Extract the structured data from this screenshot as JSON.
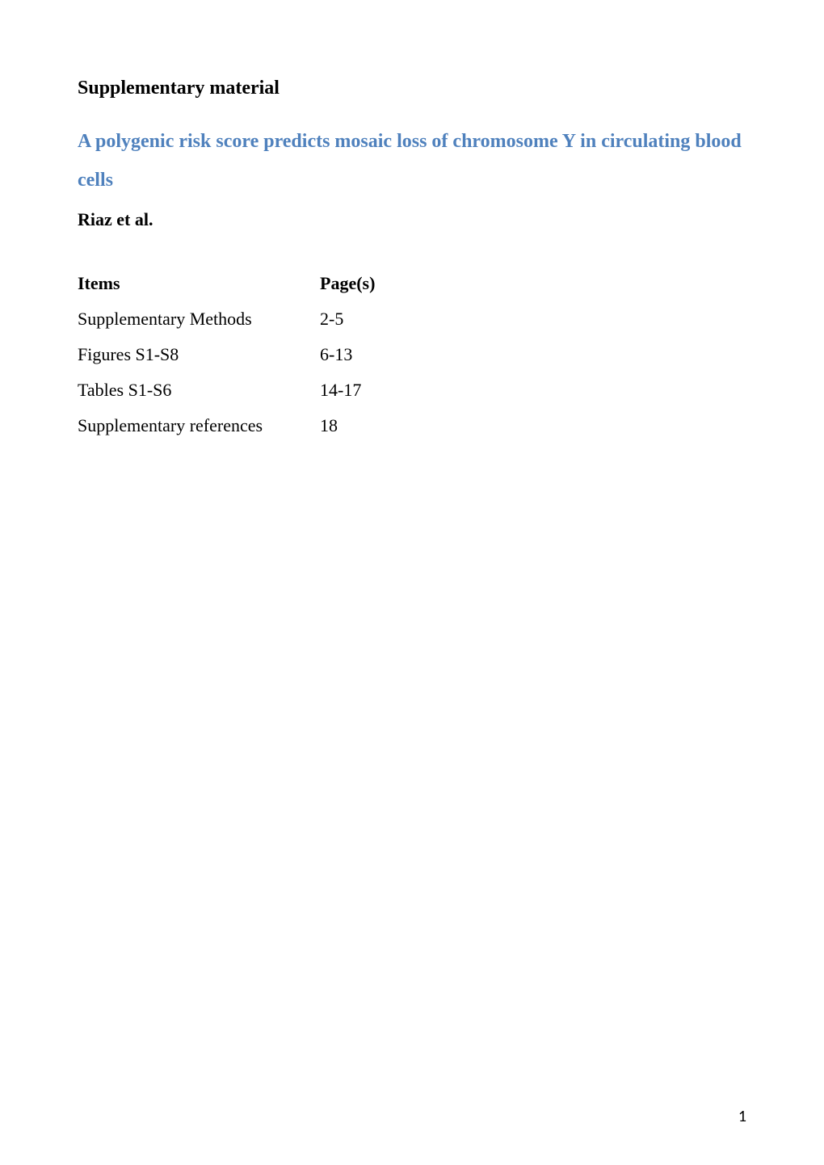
{
  "heading": "Supplementary material",
  "title": "A polygenic risk score predicts mosaic loss of chromosome Y in circulating blood cells",
  "authors": "Riaz et al.",
  "toc": {
    "header": {
      "item": "Items",
      "page": "Page(s)"
    },
    "rows": [
      {
        "item": "Supplementary Methods",
        "page": "2-5"
      },
      {
        "item": "Figures S1-S8",
        "page": "6-13"
      },
      {
        "item": "Tables S1-S6",
        "page": "14-17"
      },
      {
        "item": "Supplementary references",
        "page": "18"
      }
    ]
  },
  "page_number": "1",
  "colors": {
    "link": "#4f81bd",
    "text": "#000000",
    "background": "#ffffff"
  }
}
